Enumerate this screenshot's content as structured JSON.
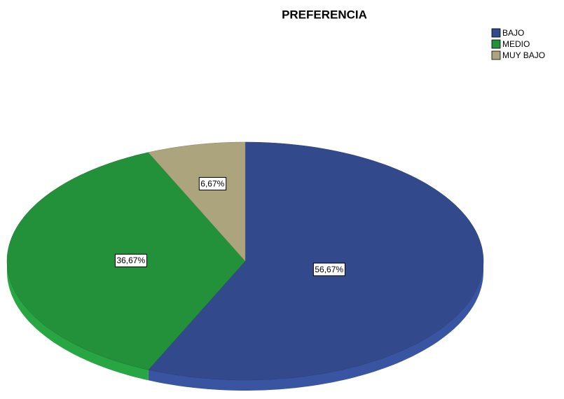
{
  "chart_data": {
    "type": "pie",
    "title": "PREFERENCIA",
    "categories": [
      "BAJO",
      "MEDIO",
      "MUY BAJO"
    ],
    "values": [
      56.67,
      36.67,
      6.67
    ],
    "value_labels": [
      "56,67%",
      "36,67%",
      "6,67%"
    ],
    "colors": [
      "#324a8c",
      "#23903a",
      "#aca47c"
    ],
    "legend": "top-right"
  }
}
